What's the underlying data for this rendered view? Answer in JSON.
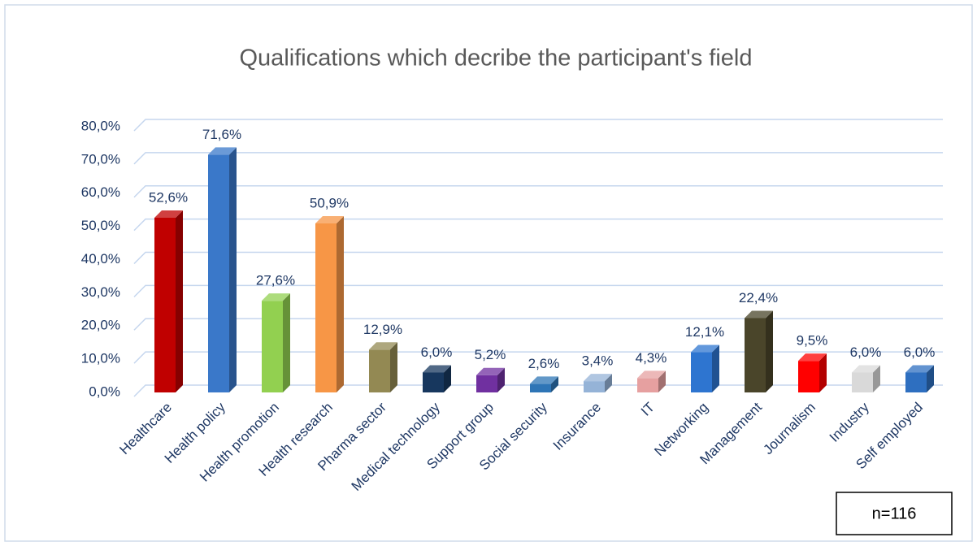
{
  "chart_data": {
    "type": "bar3d",
    "title": "Qualifications which decribe the participant's field",
    "categories": [
      "Healthcare",
      "Health policy",
      "Health promotion",
      "Health research",
      "Pharma sector",
      "Medical technology",
      "Support group",
      "Social security",
      "Insurance",
      "IT",
      "Networking",
      "Management",
      "Journalism",
      "Industry",
      "Self employed"
    ],
    "values": [
      52.6,
      71.6,
      27.6,
      50.9,
      12.9,
      6.0,
      5.2,
      2.6,
      3.4,
      4.3,
      12.1,
      22.4,
      9.5,
      6.0,
      6.0
    ],
    "value_labels": [
      "52,6%",
      "71,6%",
      "27,6%",
      "50,9%",
      "12,9%",
      "6,0%",
      "5,2%",
      "2,6%",
      "3,4%",
      "4,3%",
      "12,1%",
      "22,4%",
      "9,5%",
      "6,0%",
      "6,0%"
    ],
    "colors": [
      "#c00000",
      "#3a78c9",
      "#92d050",
      "#f79646",
      "#938953",
      "#17375e",
      "#7030a0",
      "#2e75b6",
      "#95b3d7",
      "#e6a0a0",
      "#2e75d0",
      "#4a452a",
      "#ff0000",
      "#d9d9d9",
      "#2e6fc0"
    ],
    "ylim": [
      0,
      80
    ],
    "yticks": [
      {
        "value": 0,
        "label": "0,0%"
      },
      {
        "value": 10,
        "label": "10,0%"
      },
      {
        "value": 20,
        "label": "20,0%"
      },
      {
        "value": 30,
        "label": "30,0%"
      },
      {
        "value": 40,
        "label": "40,0%"
      },
      {
        "value": 50,
        "label": "50,0%"
      },
      {
        "value": 60,
        "label": "60,0%"
      },
      {
        "value": 70,
        "label": "70,0%"
      },
      {
        "value": 80,
        "label": "80,0%"
      }
    ],
    "grid": true,
    "annotation": "n=116"
  }
}
